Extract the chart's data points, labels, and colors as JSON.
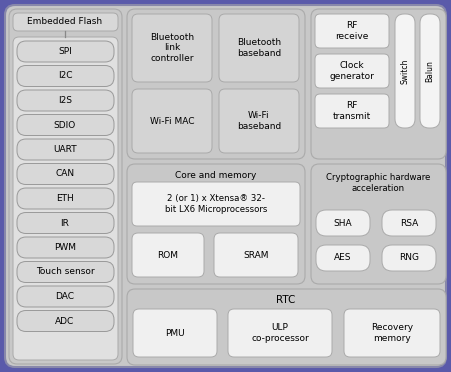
{
  "fig_width": 4.51,
  "fig_height": 3.72,
  "dpi": 100,
  "bg_color": "#5a5aaa",
  "outer_bg": "#c8c8c8",
  "section_bg": "#c0c0c0",
  "inner_bg": "#d4d4d4",
  "white_box": "#f0f0f0",
  "pill_white": "#e8e8e8",
  "left_pills": [
    "SPI",
    "I2C",
    "I2S",
    "SDIO",
    "UART",
    "CAN",
    "ETH",
    "IR",
    "PWM",
    "Touch sensor",
    "DAC",
    "ADC"
  ],
  "left_header": "Embedded Flash",
  "bt_block1": "Bluetooth\nlink\ncontroller",
  "bt_block2": "Bluetooth\nbaseband",
  "wifi_block1": "Wi-Fi MAC",
  "wifi_block2": "Wi-Fi\nbaseband",
  "rf_block1": "RF\nreceive",
  "rf_block2": "Clock\ngenerator",
  "rf_block3": "RF\ntransmit",
  "switch_label": "Switch",
  "balun_label": "Balun",
  "core_title": "Core and memory",
  "core_desc": "2 (or 1) x Xtensa® 32-\nbit LX6 Microprocessors",
  "rom_label": "ROM",
  "sram_label": "SRAM",
  "crypto_title": "Cryptographic hardware\nacceleration",
  "sha_label": "SHA",
  "rsa_label": "RSA",
  "aes_label": "AES",
  "rng_label": "RNG",
  "rtc_title": "RTC",
  "pmu_label": "PMU",
  "ulp_label": "ULP\nco-processor",
  "recovery_label": "Recovery\nmemory"
}
